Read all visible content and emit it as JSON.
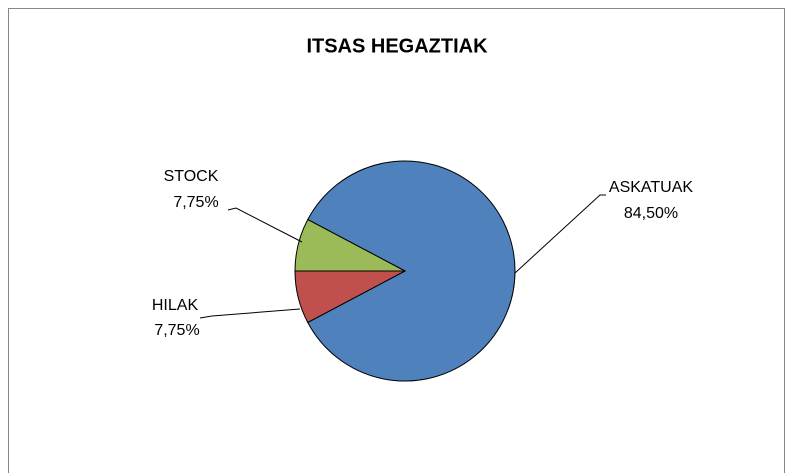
{
  "chart_data": {
    "type": "pie",
    "title": "ITSAS HEGAZTIAK",
    "categories": [
      "ASKATUAK",
      "HILAK",
      "STOCK"
    ],
    "values": [
      84.5,
      7.75,
      7.75
    ],
    "value_labels": [
      "84,50%",
      "7,75%",
      "7,75%"
    ],
    "colors": [
      "#4f81bd",
      "#c0504d",
      "#9bbb59"
    ]
  }
}
